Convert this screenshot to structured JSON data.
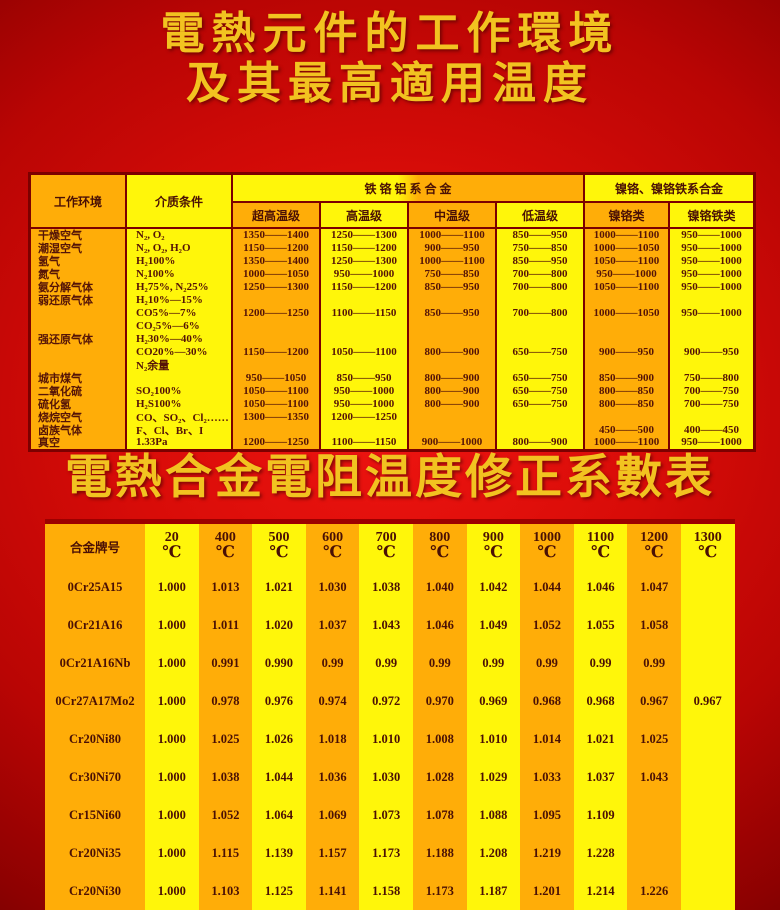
{
  "colors": {
    "background_red": "#d80c08",
    "background_dark_edge": "#420000",
    "title_gold": "#f2c320",
    "cell_orange": "#FFAD08",
    "cell_yellow": "#FFF60A",
    "table_border_maroon": "#7c0000",
    "table_text": "#551407"
  },
  "title1": {
    "line1": "電熱元件的工作環境",
    "line2": "及其最高適用温度"
  },
  "title2": "電熱合金電阻温度修正系數表",
  "table1": {
    "header": {
      "work_env": "工作环境",
      "medium": "介质条件",
      "fecral": "铁 铬 铝 系 合 金",
      "nicr": "镍铬、镍铬铁系合金",
      "ultra": "超高温级",
      "high": "高温级",
      "mid": "中温级",
      "low": "低温级",
      "nicr_class": "镍铬类",
      "nicrfe_class": "镍铬铁类"
    },
    "lines": [
      [
        "干燥空气",
        "N₂, O₂",
        "1350——1400",
        "1250——1300",
        "1000——1100",
        "850——950",
        "1000——1100",
        "950——1000"
      ],
      [
        "潮湿空气",
        "N₂, O₂, H₂O",
        "1150——1200",
        "1150——1200",
        "900——950",
        "750——850",
        "1000——1050",
        "950——1000"
      ],
      [
        "氢气",
        "H₂100%",
        "1350——1400",
        "1250——1300",
        "1000——1100",
        "850——950",
        "1050——1100",
        "950——1000"
      ],
      [
        "氮气",
        "N₂100%",
        "1000——1050",
        "950——1000",
        "750——850",
        "700——800",
        "950——1000",
        "950——1000"
      ],
      [
        "氨分解气体",
        "H₂75%, N₂25%",
        "1250——1300",
        "1150——1200",
        "850——950",
        "700——800",
        "1050——1100",
        "950——1000"
      ],
      [
        "弱还原气体",
        "H₂10%—15%",
        "",
        "",
        "",
        "",
        "",
        ""
      ],
      [
        "",
        "CO5%—7%",
        "1200——1250",
        "1100——1150",
        "850——950",
        "700——800",
        "1000——1050",
        "950——1000"
      ],
      [
        "",
        "CO₂5%—6%",
        "",
        "",
        "",
        "",
        "",
        ""
      ],
      [
        "强还原气体",
        "H₂30%—40%",
        "",
        "",
        "",
        "",
        "",
        ""
      ],
      [
        "",
        "CO20%—30%",
        "1150——1200",
        "1050——1100",
        "800——900",
        "650——750",
        "900——950",
        "900——950"
      ],
      [
        "",
        "N₂余量",
        "",
        "",
        "",
        "",
        "",
        ""
      ],
      [
        "城市煤气",
        "",
        "950——1050",
        "850——950",
        "800——900",
        "650——750",
        "850——900",
        "750——800"
      ],
      [
        "二氧化硫",
        "SO₂100%",
        "1050——1100",
        "950——1000",
        "800——900",
        "650——750",
        "800——850",
        "700——750"
      ],
      [
        "硫化氢",
        "H₂S100%",
        "1050——1100",
        "950——1000",
        "800——900",
        "650——750",
        "800——850",
        "700——750"
      ],
      [
        "烧烷空气",
        "CO、SO₂、Cl₂……",
        "1300——1350",
        "1200——1250",
        "",
        "",
        "",
        ""
      ],
      [
        "卤族气体",
        "F、Cl、Br、I",
        "",
        "",
        "",
        "",
        "450——500",
        "400——450"
      ],
      [
        "真空",
        "1.33Pa",
        "1200——1250",
        "1100——1150",
        "900——1000",
        "800——900",
        "1000——1100",
        "950——1000"
      ]
    ]
  },
  "table2": {
    "corner": "合金牌号",
    "unit": "℃",
    "temps": [
      "20",
      "400",
      "500",
      "600",
      "700",
      "800",
      "900",
      "1000",
      "1100",
      "1200",
      "1300"
    ],
    "rows": [
      [
        "0Cr25A15",
        "1.000",
        "1.013",
        "1.021",
        "1.030",
        "1.038",
        "1.040",
        "1.042",
        "1.044",
        "1.046",
        "1.047",
        ""
      ],
      [
        "0Cr21A16",
        "1.000",
        "1.011",
        "1.020",
        "1.037",
        "1.043",
        "1.046",
        "1.049",
        "1.052",
        "1.055",
        "1.058",
        ""
      ],
      [
        "0Cr21A16Nb",
        "1.000",
        "0.991",
        "0.990",
        "0.99",
        "0.99",
        "0.99",
        "0.99",
        "0.99",
        "0.99",
        "0.99",
        ""
      ],
      [
        "0Cr27A17Mo2",
        "1.000",
        "0.978",
        "0.976",
        "0.974",
        "0.972",
        "0.970",
        "0.969",
        "0.968",
        "0.968",
        "0.967",
        "0.967"
      ],
      [
        "Cr20Ni80",
        "1.000",
        "1.025",
        "1.026",
        "1.018",
        "1.010",
        "1.008",
        "1.010",
        "1.014",
        "1.021",
        "1.025",
        ""
      ],
      [
        "Cr30Ni70",
        "1.000",
        "1.038",
        "1.044",
        "1.036",
        "1.030",
        "1.028",
        "1.029",
        "1.033",
        "1.037",
        "1.043",
        ""
      ],
      [
        "Cr15Ni60",
        "1.000",
        "1.052",
        "1.064",
        "1.069",
        "1.073",
        "1.078",
        "1.088",
        "1.095",
        "1.109",
        "",
        ""
      ],
      [
        "Cr20Ni35",
        "1.000",
        "1.115",
        "1.139",
        "1.157",
        "1.173",
        "1.188",
        "1.208",
        "1.219",
        "1.228",
        "",
        ""
      ],
      [
        "Cr20Ni30",
        "1.000",
        "1.103",
        "1.125",
        "1.141",
        "1.158",
        "1.173",
        "1.187",
        "1.201",
        "1.214",
        "1.226",
        ""
      ]
    ]
  }
}
